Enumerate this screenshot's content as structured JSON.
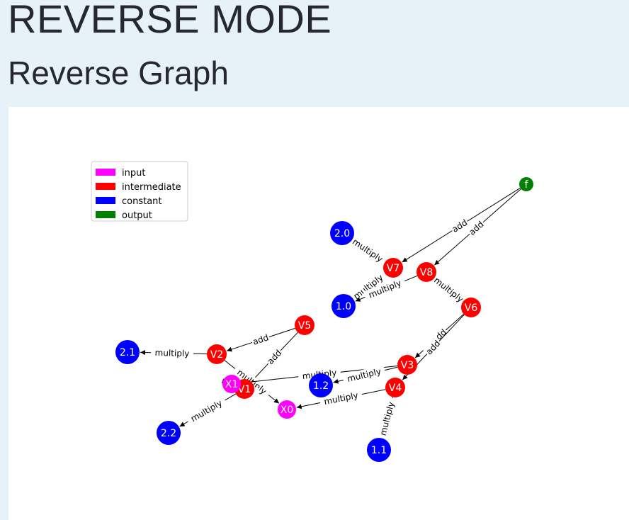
{
  "page": {
    "title": "REVERSE MODE",
    "subtitle": "Reverse Graph"
  },
  "legend": [
    {
      "label": "input",
      "color": "#ff00ff"
    },
    {
      "label": "intermediate",
      "color": "#ff0000"
    },
    {
      "label": "constant",
      "color": "#0000ff"
    },
    {
      "label": "output",
      "color": "#008000"
    }
  ],
  "graph": {
    "nodes": [
      {
        "id": "f",
        "label": "f",
        "kind": "output"
      },
      {
        "id": "V8",
        "label": "V8",
        "kind": "intermediate"
      },
      {
        "id": "V7",
        "label": "V7",
        "kind": "intermediate"
      },
      {
        "id": "V6",
        "label": "V6",
        "kind": "intermediate"
      },
      {
        "id": "V5",
        "label": "V5",
        "kind": "intermediate"
      },
      {
        "id": "V4",
        "label": "V4",
        "kind": "intermediate"
      },
      {
        "id": "V3",
        "label": "V3",
        "kind": "intermediate"
      },
      {
        "id": "V2",
        "label": "V2",
        "kind": "intermediate"
      },
      {
        "id": "V1",
        "label": "V1",
        "kind": "intermediate"
      },
      {
        "id": "X1",
        "label": "X1",
        "kind": "input"
      },
      {
        "id": "X0",
        "label": "X0",
        "kind": "input"
      },
      {
        "id": "c20",
        "label": "2.0",
        "kind": "constant"
      },
      {
        "id": "c10",
        "label": "1.0",
        "kind": "constant"
      },
      {
        "id": "c21",
        "label": "2.1",
        "kind": "constant"
      },
      {
        "id": "c22",
        "label": "2.2",
        "kind": "constant"
      },
      {
        "id": "c12",
        "label": "1.2",
        "kind": "constant"
      },
      {
        "id": "c11",
        "label": "1.1",
        "kind": "constant"
      }
    ],
    "edges": [
      {
        "from": "f",
        "to": "V7",
        "label": "add"
      },
      {
        "from": "f",
        "to": "V8",
        "label": "add"
      },
      {
        "from": "V7",
        "to": "c20",
        "label": "multiply"
      },
      {
        "from": "V7",
        "to": "c10",
        "label": "multiply"
      },
      {
        "from": "V8",
        "to": "c10",
        "label": "multiply"
      },
      {
        "from": "V8",
        "to": "V6",
        "label": "multiply"
      },
      {
        "from": "V6",
        "to": "V3",
        "label": "add"
      },
      {
        "from": "V6",
        "to": "V4",
        "label": "add"
      },
      {
        "from": "V5",
        "to": "V2",
        "label": "add"
      },
      {
        "from": "V5",
        "to": "V1",
        "label": "add"
      },
      {
        "from": "V2",
        "to": "c21",
        "label": "multiply"
      },
      {
        "from": "V2",
        "to": "X0",
        "label": "multiply"
      },
      {
        "from": "V3",
        "to": "X1",
        "label": "multiply"
      },
      {
        "from": "V3",
        "to": "c12",
        "label": "multiply"
      },
      {
        "from": "V4",
        "to": "X0",
        "label": "multiply"
      },
      {
        "from": "V4",
        "to": "c11",
        "label": "multiply"
      },
      {
        "from": "V1",
        "to": "c22",
        "label": "multiply"
      },
      {
        "from": "V1",
        "to": "X1",
        "label": "multiply"
      }
    ]
  }
}
